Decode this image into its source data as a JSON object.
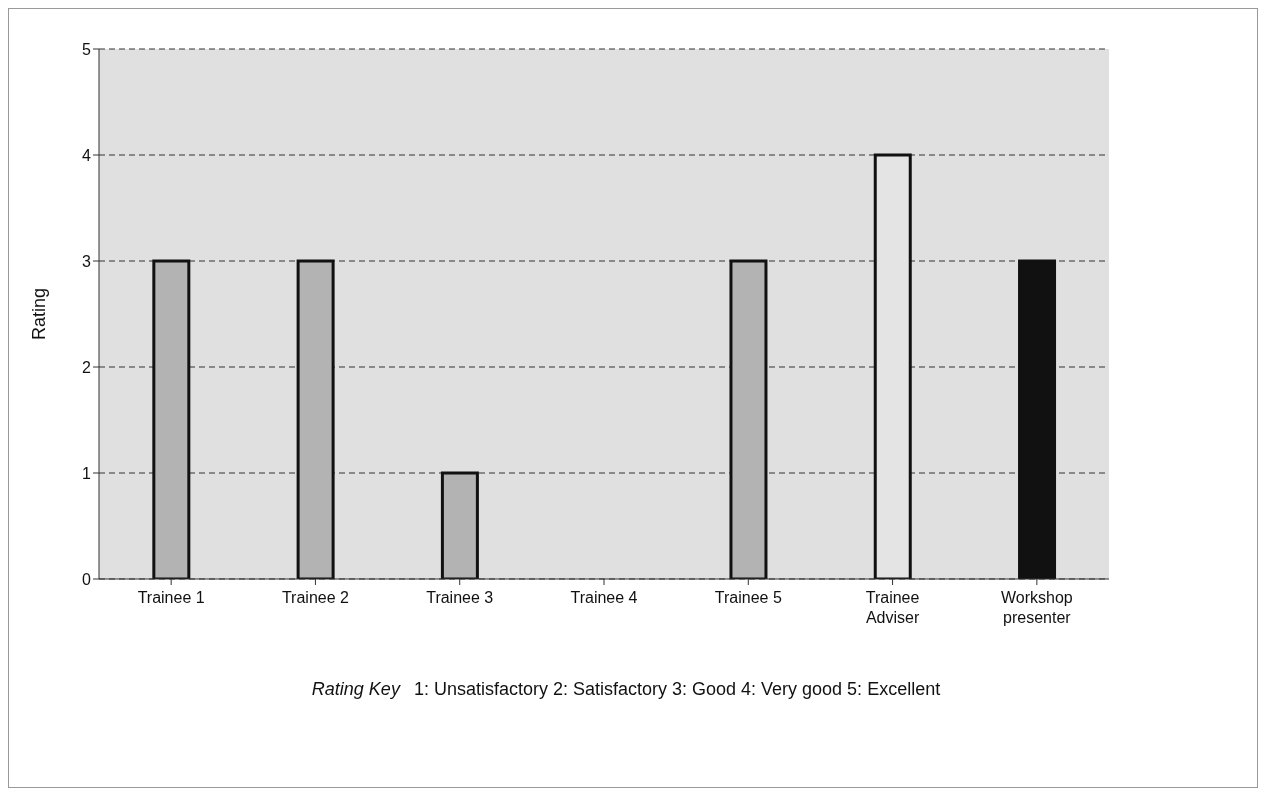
{
  "chart_data": {
    "type": "bar",
    "ylabel": "Rating",
    "categories": [
      "Trainee 1",
      "Trainee 2",
      "Trainee 3",
      "Trainee 4",
      "Trainee 5",
      "Trainee Adviser",
      "Workshop presenter"
    ],
    "values": [
      3,
      3,
      1,
      0,
      3,
      4,
      3
    ],
    "colors": [
      "#b3b3b3",
      "#b3b3b3",
      "#b3b3b3",
      "#b3b3b3",
      "#b3b3b3",
      "#e4e4e4",
      "#111111"
    ],
    "ylim": [
      0,
      5
    ],
    "yticks": [
      0,
      1,
      2,
      3,
      4,
      5
    ],
    "grid": "y",
    "annotations": [
      "Rating Key",
      "1: Unsatisfactory   2: Satisfactory   3: Good   4: Very good   5: Excellent"
    ]
  }
}
